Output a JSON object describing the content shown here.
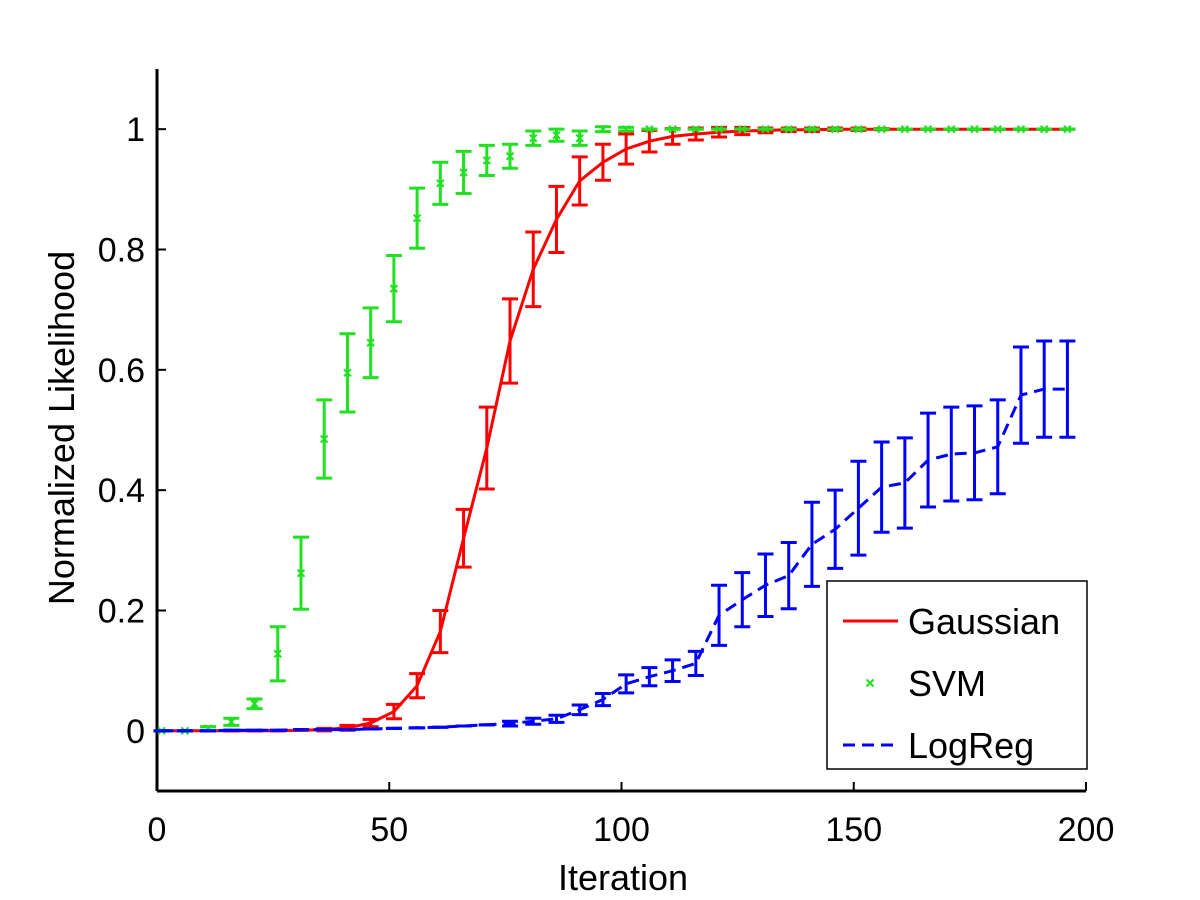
{
  "chart_data": {
    "type": "line",
    "title": "",
    "xlabel": "Iteration",
    "ylabel": "Normalized Likelihood",
    "xlim": [
      0,
      200
    ],
    "ylim": [
      -0.1,
      1.1
    ],
    "xticks": [
      0,
      50,
      100,
      150,
      200
    ],
    "yticks": [
      0,
      0.2,
      0.4,
      0.6,
      0.8,
      1
    ],
    "xtick_labels": [
      "0",
      "50",
      "100",
      "150",
      "200"
    ],
    "ytick_labels": [
      "0",
      "0.2",
      "0.4",
      "0.6",
      "0.8",
      "1"
    ],
    "grid": false,
    "legend_position": "bottom-right",
    "series": [
      {
        "name": "Gaussian",
        "style": "solid",
        "color": "#ff0000",
        "x": [
          1,
          6,
          11,
          16,
          21,
          26,
          31,
          36,
          41,
          46,
          51,
          56,
          61,
          66,
          71,
          76,
          81,
          86,
          91,
          96,
          101,
          106,
          111,
          116,
          121,
          126,
          131,
          136,
          141,
          146,
          151,
          156,
          161,
          166,
          171,
          176,
          181,
          186,
          191,
          196
        ],
        "y": [
          0,
          0,
          0,
          0,
          0,
          0,
          0.001,
          0.002,
          0.005,
          0.013,
          0.032,
          0.075,
          0.165,
          0.32,
          0.47,
          0.648,
          0.767,
          0.85,
          0.914,
          0.945,
          0.967,
          0.98,
          0.988,
          0.992,
          0.995,
          0.997,
          0.998,
          0.999,
          0.999,
          1,
          1,
          1,
          1,
          1,
          1,
          1,
          1,
          1,
          1,
          1
        ],
        "err": [
          0,
          0,
          0,
          0,
          0,
          0,
          0,
          0.002,
          0.004,
          0.006,
          0.012,
          0.02,
          0.035,
          0.048,
          0.068,
          0.07,
          0.062,
          0.055,
          0.04,
          0.03,
          0.025,
          0.018,
          0.013,
          0.01,
          0.008,
          0.006,
          0.004,
          0.003,
          0.003,
          0.002,
          0.002,
          0.001,
          0,
          0,
          0,
          0,
          0,
          0,
          0,
          0
        ]
      },
      {
        "name": "SVM",
        "style": "markers",
        "color": "#22e022",
        "x": [
          1,
          6,
          11,
          16,
          21,
          26,
          31,
          36,
          41,
          46,
          51,
          56,
          61,
          66,
          71,
          76,
          81,
          86,
          91,
          96,
          101,
          106,
          111,
          116,
          121,
          126,
          131,
          136,
          141,
          146,
          151,
          156,
          161,
          166,
          171,
          176,
          181,
          186,
          191,
          196
        ],
        "y": [
          0,
          0,
          0.004,
          0.015,
          0.045,
          0.128,
          0.262,
          0.485,
          0.595,
          0.645,
          0.735,
          0.852,
          0.91,
          0.928,
          0.948,
          0.955,
          0.985,
          0.99,
          0.985,
          1,
          1,
          1,
          1,
          1,
          1,
          1,
          1,
          1,
          1,
          1,
          1,
          1,
          1,
          1,
          1,
          1,
          1,
          1,
          1,
          1
        ],
        "err": [
          0,
          0,
          0.003,
          0.006,
          0.008,
          0.045,
          0.06,
          0.065,
          0.065,
          0.058,
          0.055,
          0.05,
          0.035,
          0.035,
          0.025,
          0.02,
          0.012,
          0.01,
          0.012,
          0.004,
          0.003,
          0,
          0,
          0,
          0,
          0,
          0,
          0,
          0,
          0,
          0,
          0,
          0,
          0,
          0,
          0,
          0,
          0,
          0,
          0
        ]
      },
      {
        "name": "LogReg",
        "style": "dashed",
        "color": "#0000ff",
        "x": [
          1,
          6,
          11,
          16,
          21,
          26,
          31,
          36,
          41,
          46,
          51,
          56,
          61,
          66,
          71,
          76,
          81,
          86,
          91,
          96,
          101,
          106,
          111,
          116,
          121,
          126,
          131,
          136,
          141,
          146,
          151,
          156,
          161,
          166,
          171,
          176,
          181,
          186,
          191,
          196
        ],
        "y": [
          0,
          0,
          0,
          0.001,
          0.001,
          0.001,
          0.002,
          0.002,
          0.002,
          0.003,
          0.004,
          0.005,
          0.006,
          0.008,
          0.01,
          0.012,
          0.016,
          0.02,
          0.035,
          0.052,
          0.078,
          0.09,
          0.1,
          0.112,
          0.192,
          0.218,
          0.242,
          0.258,
          0.31,
          0.335,
          0.37,
          0.405,
          0.412,
          0.45,
          0.46,
          0.462,
          0.472,
          0.558,
          0.568,
          0.568
        ],
        "err": [
          0,
          0,
          0,
          0,
          0,
          0,
          0,
          0,
          0,
          0,
          0,
          0,
          0,
          0,
          0,
          0.004,
          0.005,
          0.006,
          0.008,
          0.01,
          0.015,
          0.015,
          0.018,
          0.02,
          0.05,
          0.045,
          0.052,
          0.055,
          0.07,
          0.065,
          0.078,
          0.075,
          0.075,
          0.078,
          0.078,
          0.078,
          0.078,
          0.08,
          0.08,
          0.08
        ]
      }
    ]
  }
}
